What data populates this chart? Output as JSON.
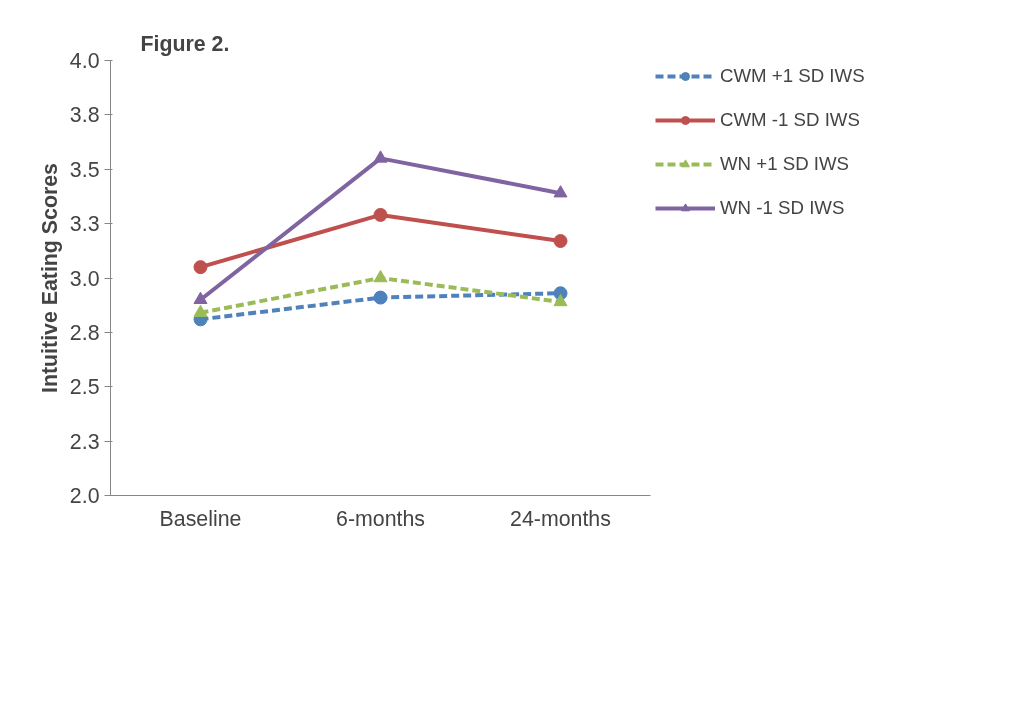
{
  "chart_data": {
    "type": "line",
    "title": "Figure 2.",
    "ylabel": "Intuitive Eating Scores",
    "categories": [
      "Baseline",
      "6-months",
      "24-months"
    ],
    "series": [
      {
        "name": "CWM +1 SD IWS",
        "color": "#4f81bd",
        "marker": "circle",
        "line_style": "dashed",
        "values": [
          2.81,
          2.91,
          2.93
        ]
      },
      {
        "name": "CWM -1 SD IWS",
        "color": "#c0504d",
        "marker": "circle",
        "line_style": "solid",
        "values": [
          3.05,
          3.29,
          3.17
        ]
      },
      {
        "name": "WN +1 SD IWS",
        "color": "#9bbb59",
        "marker": "triangle",
        "line_style": "dashed",
        "values": [
          2.84,
          3.0,
          2.89
        ]
      },
      {
        "name": "WN -1 SD IWS",
        "color": "#8064a2",
        "marker": "triangle",
        "line_style": "solid",
        "values": [
          2.9,
          3.55,
          3.39
        ]
      }
    ],
    "ylim": [
      2.0,
      4.0
    ],
    "yticks": [
      {
        "value": 2,
        "label": "2.0"
      },
      {
        "value": 2.25,
        "label": "2.3"
      },
      2.5,
      {
        "value": 2.75,
        "label": "2.8"
      },
      {
        "value": 3,
        "label": "3.0"
      },
      {
        "value": 3.25,
        "label": "3.3"
      },
      3.5,
      {
        "value": 3.75,
        "label": "3.8"
      },
      {
        "value": 4,
        "label": "4.0"
      }
    ],
    "grid": false,
    "legend": "top right"
  }
}
